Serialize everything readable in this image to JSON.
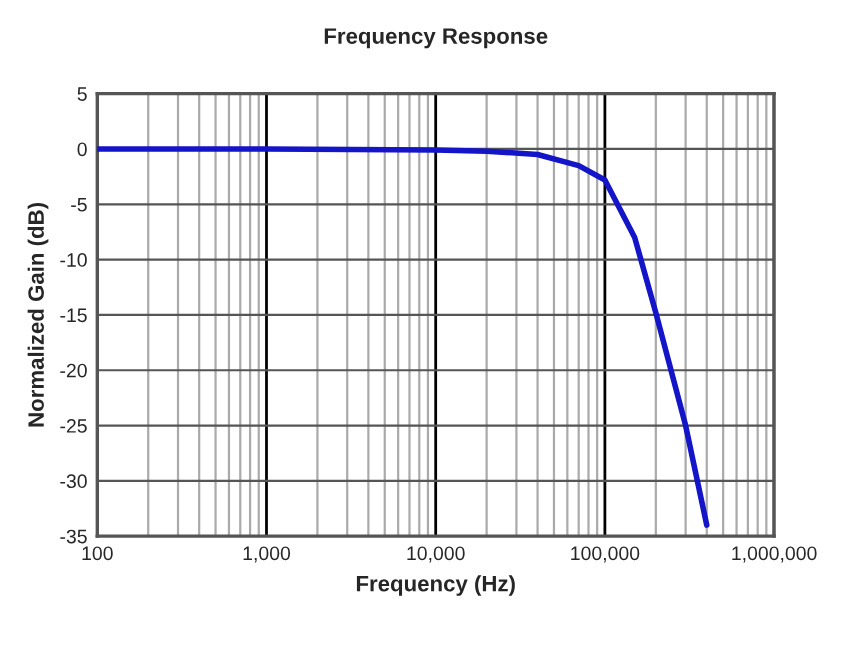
{
  "chart_data": {
    "type": "line",
    "title": "Frequency Response",
    "xlabel": "Frequency (Hz)",
    "ylabel": "Normalized Gain (dB)",
    "log": "x",
    "grid": true,
    "marker": "none",
    "line_style": "solid",
    "x": [
      100,
      1000,
      10000,
      20000,
      40000,
      70000,
      100000,
      150000,
      200000,
      300000,
      400000
    ],
    "series": [
      {
        "color": "#1414c8",
        "values": [
          0,
          0,
          -0.1,
          -0.2,
          -0.5,
          -1.5,
          -2.8,
          -8,
          -14.8,
          -25,
          -34
        ]
      }
    ],
    "xlim": [
      100,
      1000000
    ],
    "ylim": [
      -35,
      5
    ],
    "xticks": [
      100,
      {
        "value": 1000,
        "label": "1,000"
      },
      {
        "value": 10000,
        "label": "10,000"
      },
      {
        "value": 100000,
        "label": "100,000"
      },
      {
        "value": 1000000,
        "label": "1,000,000"
      }
    ],
    "yticks": [
      -35,
      -30,
      -25,
      -20,
      -15,
      -10,
      -5,
      0,
      5
    ]
  }
}
